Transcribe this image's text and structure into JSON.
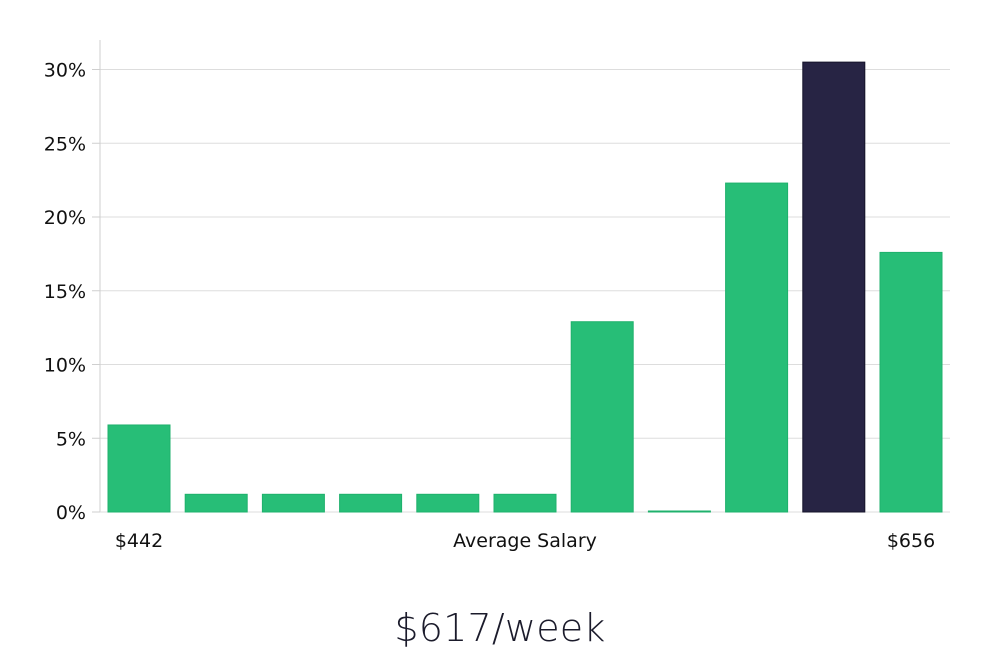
{
  "headline": "$617/week",
  "chart_data": {
    "type": "bar",
    "values": [
      5.9,
      1.2,
      1.2,
      1.2,
      1.2,
      1.2,
      12.9,
      0.05,
      22.3,
      30.5,
      17.6
    ],
    "highlight_index": 9,
    "y_unit": "%",
    "ylim": [
      0,
      32
    ],
    "yticks": [
      0,
      5,
      10,
      15,
      20,
      25,
      30
    ],
    "grid": true,
    "x_labels": {
      "left": "$442",
      "center": "Average Salary",
      "right": "$656"
    },
    "colors": {
      "bar": "#27be77",
      "highlight": "#272444",
      "grid": "#dddddd",
      "axis": "#cfcfcf",
      "text": "#111111"
    }
  }
}
